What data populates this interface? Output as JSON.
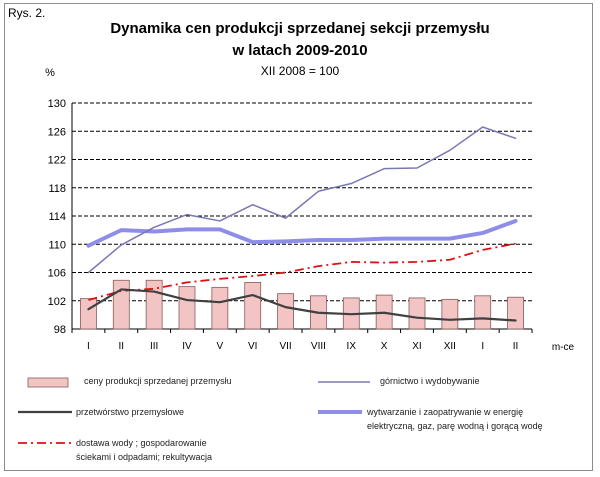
{
  "figure_label": "Rys. 2.",
  "chart_data": {
    "type": "bar+line",
    "title_line1": "Dynamika cen produkcji sprzedanej sekcji przemysłu",
    "title_line2": "w latach 2009-2010",
    "subtitle": "XII 2008 = 100",
    "ylabel": "%",
    "xlabel": "m-ce",
    "ylim": [
      98,
      130
    ],
    "yticks": [
      98,
      102,
      106,
      110,
      114,
      118,
      122,
      126,
      130
    ],
    "grid": true,
    "categories": [
      "I",
      "II",
      "III",
      "IV",
      "V",
      "VI",
      "VII",
      "VIII",
      "IX",
      "X",
      "XI",
      "XII",
      "I",
      "II"
    ],
    "bars": {
      "name": "ceny produkcji sprzedanej przemysłu",
      "color": "#f2c4c4",
      "values": [
        102.3,
        104.9,
        104.9,
        104.0,
        103.9,
        104.6,
        103.0,
        102.7,
        102.4,
        102.8,
        102.4,
        102.2,
        102.7,
        102.5
      ]
    },
    "series": [
      {
        "name": "górnictwo i wydobywanie",
        "color": "#7a78b0",
        "style": "solid",
        "width": 1.5,
        "values": [
          106.0,
          109.9,
          112.4,
          114.2,
          113.3,
          115.6,
          113.7,
          117.5,
          118.6,
          120.7,
          120.8,
          123.3,
          126.6,
          125.0
        ]
      },
      {
        "name": "przetwórstwo przemysłowe",
        "color": "#404040",
        "style": "solid",
        "width": 2.2,
        "values": [
          100.8,
          103.6,
          103.3,
          102.1,
          101.8,
          102.8,
          101.1,
          100.3,
          100.1,
          100.3,
          99.6,
          99.3,
          99.5,
          99.2
        ]
      },
      {
        "name": "wytwarzanie i zaopatrywanie w energię elektryczną, gaz, parę wodną i gorącą wodę",
        "color": "#8e8ee8",
        "style": "solid",
        "width": 4,
        "values": [
          109.8,
          112.0,
          111.8,
          112.1,
          112.1,
          110.3,
          110.4,
          110.6,
          110.6,
          110.8,
          110.8,
          110.8,
          111.6,
          113.3
        ]
      },
      {
        "name": "dostawa wody; gospodarowanie ściekami i odpadami; rekultywacja",
        "color": "#dd1111",
        "style": "dashdot",
        "width": 1.8,
        "values": [
          102.1,
          103.4,
          103.7,
          104.6,
          105.1,
          105.5,
          106.0,
          106.9,
          107.5,
          107.4,
          107.5,
          107.8,
          109.2,
          110.1
        ]
      }
    ]
  },
  "legend": [
    {
      "label": "ceny  produkcji  sprzedanej  przemysłu",
      "key": "bars"
    },
    {
      "label": "górnictwo  i  wydobywanie",
      "key": "s0"
    },
    {
      "label": "przetwórstwo  przemysłowe",
      "key": "s1"
    },
    {
      "label_line1": "wytwarzanie  i  zaopatrywanie  w  energię",
      "label_line2": "elektryczną,  gaz,  parę  wodną  i  gorącą  wodę",
      "key": "s2"
    },
    {
      "label_line1": "dostawa wody ;  gospodarowanie",
      "label_line2": "ściekami  i  odpadami;  rekultywacja",
      "key": "s3"
    }
  ]
}
